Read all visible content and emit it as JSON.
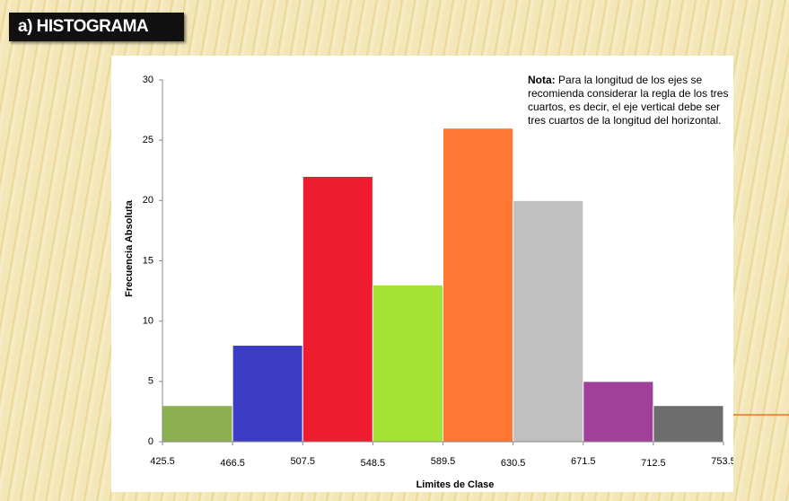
{
  "slide_title": "a) HISTOGRAMA",
  "chart_data": {
    "type": "histogram",
    "x_label": "Limites de Clase",
    "y_label": "Frecuencia Absoluta",
    "bins": [
      425.5,
      466.5,
      507.5,
      548.5,
      589.5,
      630.5,
      671.5,
      712.5,
      753.5
    ],
    "values": [
      3,
      8,
      22,
      13,
      26,
      20,
      5,
      3
    ],
    "colors": [
      "#8db050",
      "#3c3cc4",
      "#ee1c2e",
      "#a4e234",
      "#ff7733",
      "#c0c0c0",
      "#a0409a",
      "#6d6d6d"
    ],
    "xlim": [
      425.5,
      753.5
    ],
    "ylim": [
      0,
      30
    ],
    "yticks": [
      0,
      5,
      10,
      15,
      20,
      25,
      30
    ],
    "note_label": "Nota:",
    "note": "Para la longitud de los ejes se recomienda considerar la regla de los tres cuartos, es decir, el eje vertical debe ser tres cuartos de la longitud del horizontal."
  }
}
